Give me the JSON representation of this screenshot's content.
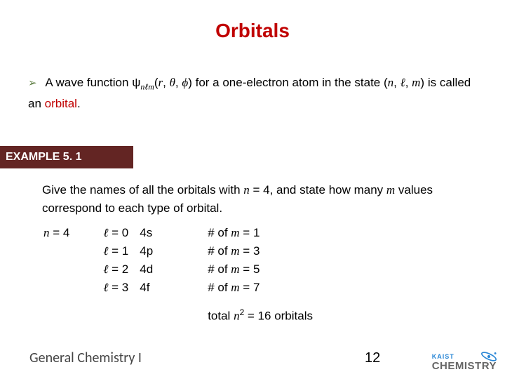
{
  "title": {
    "text": "Orbitals",
    "color": "#c00000"
  },
  "bullet": {
    "arrow_color": "#5b7b3f",
    "orbital_color": "#c00000",
    "t1": "A wave function ",
    "psi_html": "ψ<sub><span class=\"italic\">nℓm</span></sub>(<span class=\"italic\">r</span>, <span class=\"italic\">θ</span>, <span class=\"italic\">ϕ</span>)",
    "t2": " for a one-electron atom in the state ",
    "state_html": "(<span class=\"italic\">n</span>, <span class=\"italic\">ℓ</span>, <span class=\"italic\">m</span>)",
    "t3": " is called an ",
    "orb": "orbital",
    "t4": "."
  },
  "example": {
    "label": "EXAMPLE 5. 1",
    "bg": "#632523"
  },
  "question": "Give the names of all the orbitals with n = 4, and state how many m values correspond to each type of orbital.",
  "table": {
    "n": "n = 4",
    "rows": [
      {
        "l": "ℓ = 0",
        "name": "4s",
        "m": "# of m = 1"
      },
      {
        "l": "ℓ = 1",
        "name": "4p",
        "m": "# of m = 3"
      },
      {
        "l": "ℓ = 2",
        "name": "4d",
        "m": "# of m = 5"
      },
      {
        "l": "ℓ = 3",
        "name": "4f",
        "m": "# of m = 7"
      }
    ],
    "total": "total n² = 16 orbitals"
  },
  "footer": {
    "course": "General Chemistry I",
    "page": "12"
  },
  "logo": {
    "top": "KAIST",
    "bottom": "CHEMISTRY"
  }
}
